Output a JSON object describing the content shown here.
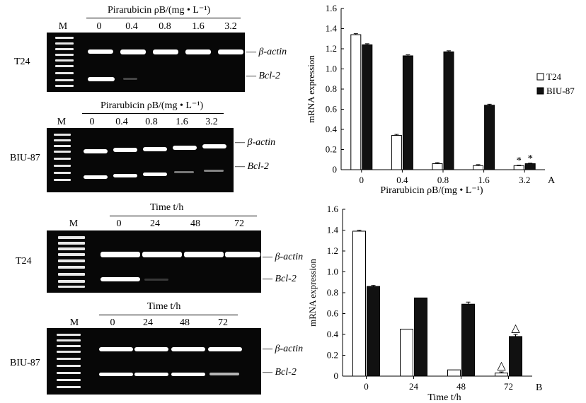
{
  "gels": {
    "p1": {
      "cell": "T24",
      "header": "Pirarubicin ρB/(mg • L⁻¹)",
      "lanes": [
        "M",
        "0",
        "0.4",
        "0.8",
        "1.6",
        "3.2"
      ],
      "gene_top": "β-actin",
      "gene_bottom": "Bcl-2"
    },
    "p2": {
      "cell": "BIU-87",
      "header": "Pirarubicin ρB/(mg • L⁻¹)",
      "lanes": [
        "M",
        "0",
        "0.4",
        "0.8",
        "1.6",
        "3.2"
      ],
      "gene_top": "β-actin",
      "gene_bottom": "Bcl-2"
    },
    "p3": {
      "cell": "T24",
      "header": "Time t/h",
      "lanes": [
        "M",
        "0",
        "24",
        "48",
        "72"
      ],
      "gene_top": "β-actin",
      "gene_bottom": "Bcl-2"
    },
    "p4": {
      "cell": "BIU-87",
      "header": "Time t/h",
      "lanes": [
        "M",
        "0",
        "24",
        "48",
        "72"
      ],
      "gene_top": "β-actin",
      "gene_bottom": "Bcl-2"
    }
  },
  "chart_data": [
    {
      "type": "bar",
      "panel_label": "A",
      "categories": [
        "0",
        "0.4",
        "0.8",
        "1.6",
        "3.2"
      ],
      "xlabel": "Pirarubicin ρB/(mg • L⁻¹)",
      "ylabel": "mRNA expression",
      "ylim": [
        0,
        1.6
      ],
      "yticks": [
        "0",
        "0.2",
        "0.4",
        "0.6",
        "0.8",
        "1.0",
        "1.2",
        "1.4",
        "1.6"
      ],
      "series": [
        {
          "name": "T24",
          "values": [
            1.34,
            0.34,
            0.06,
            0.04,
            0.04
          ],
          "errors": [
            0.01,
            0.01,
            0.01,
            0.01,
            0.005
          ]
        },
        {
          "name": "BIU-87",
          "values": [
            1.24,
            1.13,
            1.17,
            0.64,
            0.06
          ],
          "errors": [
            0.01,
            0.01,
            0.01,
            0.01,
            0.005
          ]
        }
      ],
      "annotations": [
        "*",
        "*"
      ],
      "legend": [
        "T24",
        "BIU-87"
      ]
    },
    {
      "type": "bar",
      "panel_label": "B",
      "categories": [
        "0",
        "24",
        "48",
        "72"
      ],
      "xlabel": "Time t/h",
      "ylabel": "mRNA expression",
      "ylim": [
        0,
        1.6
      ],
      "yticks": [
        "0",
        "0.2",
        "0.4",
        "0.6",
        "0.8",
        "1.0",
        "1.2",
        "1.4",
        "1.6"
      ],
      "series": [
        {
          "name": "T24",
          "values": [
            1.39,
            0.45,
            0.06,
            0.03
          ],
          "errors": [
            0.01,
            0.0,
            0.0,
            0.01
          ]
        },
        {
          "name": "BIU-87",
          "values": [
            0.86,
            0.75,
            0.69,
            0.38
          ],
          "errors": [
            0.01,
            0.0,
            0.02,
            0.02
          ]
        }
      ],
      "annotations": [
        "△",
        "△"
      ]
    }
  ],
  "colors": {
    "t24": "#ffffff",
    "biu87": "#111111",
    "gel": "#070707",
    "band": "#ffffff"
  }
}
